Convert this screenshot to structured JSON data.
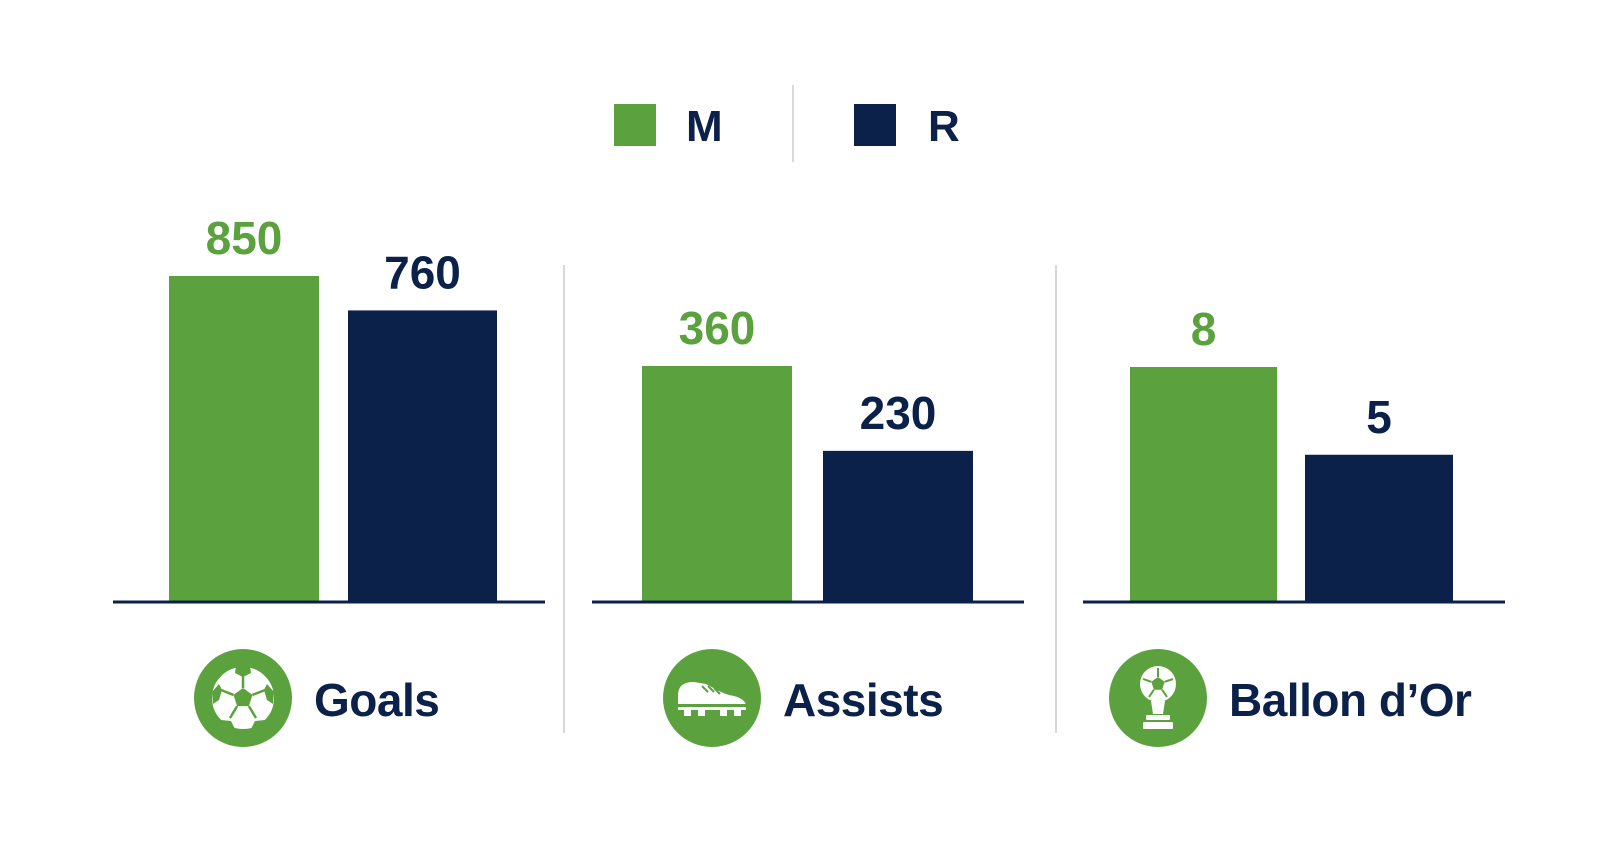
{
  "colors": {
    "M": "#5ba23f",
    "R": "#0b214a",
    "divider": "#d8d8d8",
    "baseline": "#0b214a"
  },
  "legend": [
    {
      "name": "M",
      "color": "#5ba23f"
    },
    {
      "name": "R",
      "color": "#0b214a"
    }
  ],
  "chart_data": {
    "type": "bar",
    "grouped": true,
    "independent_scales": true,
    "categories": [
      "Goals",
      "Assists",
      "Ballon d’Or"
    ],
    "category_icons": [
      "soccer-ball-icon",
      "football-boot-icon",
      "trophy-icon"
    ],
    "series": [
      {
        "name": "M",
        "values": [
          850,
          360,
          8
        ]
      },
      {
        "name": "R",
        "values": [
          760,
          230,
          5
        ]
      }
    ],
    "title": "",
    "xlabel": "",
    "ylabel": "",
    "grid": false,
    "legend_position": "top-center"
  }
}
